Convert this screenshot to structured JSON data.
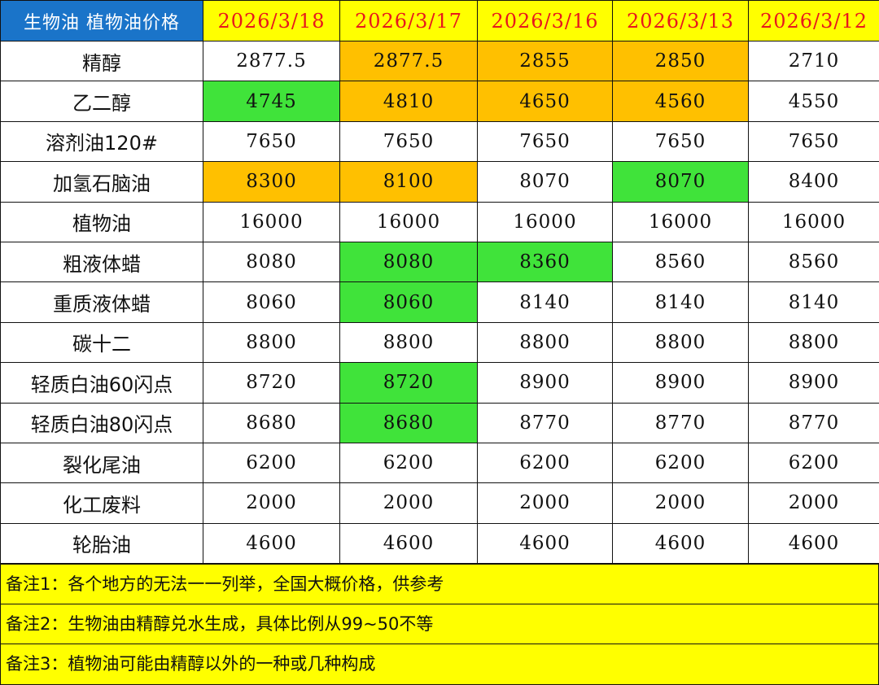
{
  "table": {
    "corner_label": "生物油 植物油价格",
    "dates": [
      "2026/3/18",
      "2026/3/17",
      "2026/3/16",
      "2026/3/13",
      "2026/3/12"
    ],
    "highlight_colors": {
      "orange": "#ffc000",
      "green": "#40e33a",
      "header_blue": "#1a74c9",
      "header_yellow": "#ffff00",
      "date_red": "#e8171d"
    },
    "rows": [
      {
        "name": "精醇",
        "values": [
          "2877.5",
          "2877.5",
          "2855",
          "2850",
          "2710"
        ],
        "highlight": [
          "",
          "orange",
          "orange",
          "orange",
          ""
        ]
      },
      {
        "name": "乙二醇",
        "values": [
          "4745",
          "4810",
          "4650",
          "4560",
          "4550"
        ],
        "highlight": [
          "green",
          "orange",
          "orange",
          "orange",
          ""
        ]
      },
      {
        "name": "溶剂油120#",
        "values": [
          "7650",
          "7650",
          "7650",
          "7650",
          "7650"
        ],
        "highlight": [
          "",
          "",
          "",
          "",
          ""
        ]
      },
      {
        "name": "加氢石脑油",
        "values": [
          "8300",
          "8100",
          "8070",
          "8070",
          "8400"
        ],
        "highlight": [
          "orange",
          "orange",
          "",
          "green",
          ""
        ]
      },
      {
        "name": "植物油",
        "values": [
          "16000",
          "16000",
          "16000",
          "16000",
          "16000"
        ],
        "highlight": [
          "",
          "",
          "",
          "",
          ""
        ]
      },
      {
        "name": "粗液体蜡",
        "values": [
          "8080",
          "8080",
          "8360",
          "8560",
          "8560"
        ],
        "highlight": [
          "",
          "green",
          "green",
          "",
          ""
        ]
      },
      {
        "name": "重质液体蜡",
        "values": [
          "8060",
          "8060",
          "8140",
          "8140",
          "8140"
        ],
        "highlight": [
          "",
          "green",
          "",
          "",
          ""
        ]
      },
      {
        "name": "碳十二",
        "values": [
          "8800",
          "8800",
          "8800",
          "8800",
          "8800"
        ],
        "highlight": [
          "",
          "",
          "",
          "",
          ""
        ]
      },
      {
        "name": "轻质白油60闪点",
        "values": [
          "8720",
          "8720",
          "8900",
          "8900",
          "8900"
        ],
        "highlight": [
          "",
          "green",
          "",
          "",
          ""
        ]
      },
      {
        "name": "轻质白油80闪点",
        "values": [
          "8680",
          "8680",
          "8770",
          "8770",
          "8770"
        ],
        "highlight": [
          "",
          "green",
          "",
          "",
          ""
        ]
      },
      {
        "name": "裂化尾油",
        "values": [
          "6200",
          "6200",
          "6200",
          "6200",
          "6200"
        ],
        "highlight": [
          "",
          "",
          "",
          "",
          ""
        ]
      },
      {
        "name": "化工废料",
        "values": [
          "2000",
          "2000",
          "2000",
          "2000",
          "2000"
        ],
        "highlight": [
          "",
          "",
          "",
          "",
          ""
        ]
      },
      {
        "name": "轮胎油",
        "values": [
          "4600",
          "4600",
          "4600",
          "4600",
          "4600"
        ],
        "highlight": [
          "",
          "",
          "",
          "",
          ""
        ]
      }
    ]
  },
  "notes": [
    "备注1：各个地方的无法一一列举，全国大概价格，供参考",
    "备注2：生物油由精醇兑水生成，具体比例从99~50不等",
    "备注3：植物油可能由精醇以外的一种或几种构成"
  ]
}
